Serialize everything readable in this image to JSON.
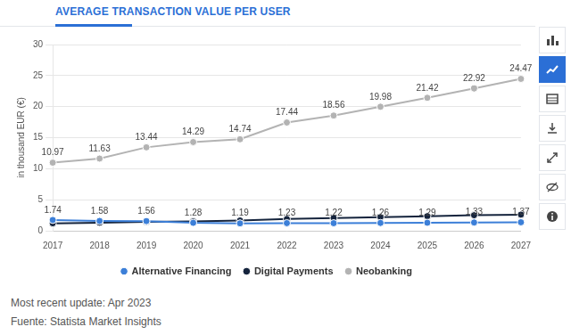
{
  "chart_data": {
    "type": "line",
    "title": "AVERAGE TRANSACTION VALUE PER USER",
    "y_label": "in thousand EUR (€)",
    "categories": [
      "2017",
      "2018",
      "2019",
      "2020",
      "2021",
      "2022",
      "2023",
      "2024",
      "2025",
      "2026",
      "2027"
    ],
    "series": [
      {
        "name": "Alternative Financing",
        "color": "#3c7fd8",
        "marker": "circle",
        "data_labels": true,
        "values": [
          1.74,
          1.58,
          1.56,
          1.28,
          1.19,
          1.23,
          1.22,
          1.26,
          1.29,
          1.33,
          1.37
        ]
      },
      {
        "name": "Digital Payments",
        "color": "#15243d",
        "marker": "circle",
        "data_labels": false,
        "values": [
          1.2,
          1.3,
          1.45,
          1.5,
          1.65,
          1.9,
          2.05,
          2.2,
          2.35,
          2.5,
          2.6
        ]
      },
      {
        "name": "Neobanking",
        "color": "#b3b3b3",
        "marker": "circle",
        "data_labels": true,
        "values": [
          10.97,
          11.63,
          13.44,
          14.29,
          14.74,
          17.44,
          18.56,
          19.98,
          21.42,
          22.92,
          24.47
        ]
      }
    ],
    "ylim": [
      0,
      30
    ],
    "yticks": [
      0,
      5,
      10,
      15,
      20,
      25,
      30
    ],
    "grid": true,
    "legend": "bottom",
    "footer": [
      "Most recent update: Apr 2023",
      "Fuente: Statista Market Insights"
    ]
  }
}
